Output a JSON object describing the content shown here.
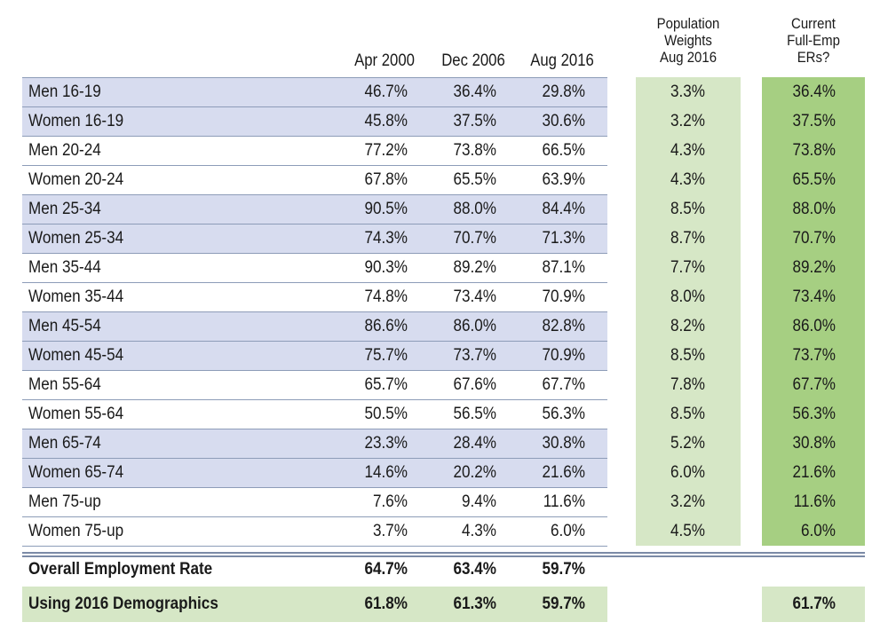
{
  "chart_data": {
    "type": "table",
    "columns": [
      "Apr 2000",
      "Dec 2006",
      "Aug 2016",
      "Population Weights Aug 2016",
      "Current Full-Emp ERs?"
    ],
    "column_headers": {
      "apr2000": "Apr 2000",
      "dec2006": "Dec 2006",
      "aug2016": "Aug 2016",
      "weights": [
        "Population",
        "Weights",
        "Aug 2016"
      ],
      "fullemp": [
        "Current",
        "Full-Emp",
        "ERs?"
      ]
    },
    "rows": [
      {
        "label": "Men 16-19",
        "apr2000": "46.7%",
        "dec2006": "36.4%",
        "aug2016": "29.8%",
        "weight": "3.3%",
        "fullemp": "36.4%"
      },
      {
        "label": "Women 16-19",
        "apr2000": "45.8%",
        "dec2006": "37.5%",
        "aug2016": "30.6%",
        "weight": "3.2%",
        "fullemp": "37.5%"
      },
      {
        "label": "Men 20-24",
        "apr2000": "77.2%",
        "dec2006": "73.8%",
        "aug2016": "66.5%",
        "weight": "4.3%",
        "fullemp": "73.8%"
      },
      {
        "label": "Women 20-24",
        "apr2000": "67.8%",
        "dec2006": "65.5%",
        "aug2016": "63.9%",
        "weight": "4.3%",
        "fullemp": "65.5%"
      },
      {
        "label": "Men 25-34",
        "apr2000": "90.5%",
        "dec2006": "88.0%",
        "aug2016": "84.4%",
        "weight": "8.5%",
        "fullemp": "88.0%"
      },
      {
        "label": "Women 25-34",
        "apr2000": "74.3%",
        "dec2006": "70.7%",
        "aug2016": "71.3%",
        "weight": "8.7%",
        "fullemp": "70.7%"
      },
      {
        "label": "Men 35-44",
        "apr2000": "90.3%",
        "dec2006": "89.2%",
        "aug2016": "87.1%",
        "weight": "7.7%",
        "fullemp": "89.2%"
      },
      {
        "label": "Women 35-44",
        "apr2000": "74.8%",
        "dec2006": "73.4%",
        "aug2016": "70.9%",
        "weight": "8.0%",
        "fullemp": "73.4%"
      },
      {
        "label": "Men 45-54",
        "apr2000": "86.6%",
        "dec2006": "86.0%",
        "aug2016": "82.8%",
        "weight": "8.2%",
        "fullemp": "86.0%"
      },
      {
        "label": "Women 45-54",
        "apr2000": "75.7%",
        "dec2006": "73.7%",
        "aug2016": "70.9%",
        "weight": "8.5%",
        "fullemp": "73.7%"
      },
      {
        "label": "Men 55-64",
        "apr2000": "65.7%",
        "dec2006": "67.6%",
        "aug2016": "67.7%",
        "weight": "7.8%",
        "fullemp": "67.7%"
      },
      {
        "label": "Women 55-64",
        "apr2000": "50.5%",
        "dec2006": "56.5%",
        "aug2016": "56.3%",
        "weight": "8.5%",
        "fullemp": "56.3%"
      },
      {
        "label": "Men 65-74",
        "apr2000": "23.3%",
        "dec2006": "28.4%",
        "aug2016": "30.8%",
        "weight": "5.2%",
        "fullemp": "30.8%"
      },
      {
        "label": "Women 65-74",
        "apr2000": "14.6%",
        "dec2006": "20.2%",
        "aug2016": "21.6%",
        "weight": "6.0%",
        "fullemp": "21.6%"
      },
      {
        "label": "Men 75-up",
        "apr2000": "7.6%",
        "dec2006": "9.4%",
        "aug2016": "11.6%",
        "weight": "3.2%",
        "fullemp": "11.6%"
      },
      {
        "label": "Women 75-up",
        "apr2000": "3.7%",
        "dec2006": "4.3%",
        "aug2016": "6.0%",
        "weight": "4.5%",
        "fullemp": "6.0%"
      }
    ],
    "summary": [
      {
        "label": "Overall Employment Rate",
        "apr2000": "64.7%",
        "dec2006": "63.4%",
        "aug2016": "59.7%",
        "fullemp": ""
      },
      {
        "label": "Using 2016 Demographics",
        "apr2000": "61.8%",
        "dec2006": "61.3%",
        "aug2016": "59.7%",
        "fullemp": "61.7%"
      }
    ]
  },
  "colors": {
    "blue_band": "#d7dcef",
    "weights_fill": "#d6e7c6",
    "fullemp_fill": "#a6cf82",
    "summary_fill": "#d6e7c6",
    "rule": "#7b8aa6"
  }
}
